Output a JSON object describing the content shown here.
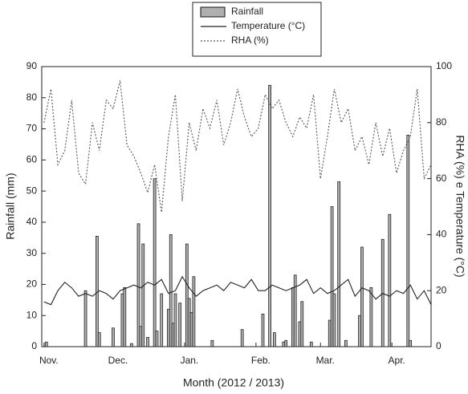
{
  "chart_data": {
    "type": "bar-line",
    "xlabel": "Month (2012 / 2013)",
    "ylabel": "Rainfall (mm)",
    "y2label": "RHA (%) e Temperature (°C)",
    "xlim": [
      -1,
      168
    ],
    "ylim": [
      0,
      90
    ],
    "y2lim": [
      0,
      100
    ],
    "xticks": [
      {
        "value": 0,
        "label": "Nov."
      },
      {
        "value": 30,
        "label": "Dec."
      },
      {
        "value": 61,
        "label": "Jan."
      },
      {
        "value": 92,
        "label": "Feb."
      },
      {
        "value": 120,
        "label": "Mar."
      },
      {
        "value": 151,
        "label": "Apr."
      }
    ],
    "yticks": [
      0,
      10,
      20,
      30,
      40,
      50,
      60,
      70,
      80,
      90
    ],
    "y2ticks": [
      0,
      20,
      40,
      60,
      80,
      100
    ],
    "series": [
      {
        "name": "Rainfall",
        "kind": "bar",
        "color": "#b0b0b0",
        "x": [
          1,
          18,
          23,
          24,
          30,
          34,
          35,
          38,
          41,
          42,
          43,
          45,
          48,
          49,
          51,
          54,
          55,
          56,
          57,
          59,
          62,
          63,
          64,
          65,
          73,
          86,
          95,
          98,
          100,
          104,
          105,
          108,
          109,
          111,
          112,
          116,
          124,
          125,
          126,
          128,
          131,
          137,
          138,
          142,
          147,
          150,
          158,
          159
        ],
        "values": [
          1.5,
          18,
          35.5,
          4.5,
          6,
          17,
          19,
          1,
          39.5,
          6.5,
          33,
          3,
          54,
          5,
          17,
          12,
          36,
          7.5,
          17,
          14,
          33,
          15.5,
          11,
          22.5,
          2,
          5.5,
          10.5,
          84,
          4.5,
          1.5,
          2,
          19,
          23,
          8,
          14.5,
          1.5,
          8.5,
          45,
          17,
          53,
          2,
          10,
          32,
          19,
          34.5,
          42.5,
          68,
          2
        ]
      },
      {
        "name": "Temperature (°C)",
        "kind": "line",
        "axis": "y2",
        "color": "#222",
        "dash": "none",
        "x": [
          0,
          3,
          6,
          9,
          12,
          15,
          18,
          21,
          24,
          27,
          30,
          33,
          36,
          39,
          42,
          45,
          48,
          51,
          54,
          57,
          60,
          63,
          66,
          69,
          72,
          75,
          78,
          81,
          84,
          87,
          90,
          93,
          96,
          99,
          102,
          105,
          108,
          111,
          114,
          117,
          120,
          123,
          126,
          129,
          132,
          135,
          138,
          141,
          144,
          147,
          150,
          153,
          156,
          159,
          162,
          165,
          168
        ],
        "values": [
          16,
          15,
          20,
          23,
          21,
          18,
          19,
          18,
          20,
          19,
          17,
          20,
          21,
          22,
          21,
          23,
          22,
          24,
          19,
          20,
          25,
          21,
          18,
          20,
          21,
          22,
          20,
          23,
          22,
          21,
          24,
          20,
          20,
          22,
          21,
          20,
          21,
          22,
          24,
          19,
          21,
          19,
          20,
          22,
          24,
          18,
          21,
          20,
          17,
          19,
          18,
          20,
          19,
          22,
          17,
          20,
          15
        ]
      },
      {
        "name": "RHA (%)",
        "kind": "line",
        "axis": "y2",
        "color": "#555",
        "dash": "2 2",
        "x": [
          0,
          3,
          6,
          9,
          12,
          15,
          18,
          21,
          24,
          27,
          30,
          33,
          36,
          39,
          42,
          45,
          48,
          51,
          54,
          57,
          60,
          63,
          66,
          69,
          72,
          75,
          78,
          81,
          84,
          87,
          90,
          93,
          96,
          99,
          102,
          105,
          108,
          111,
          114,
          117,
          120,
          123,
          126,
          129,
          132,
          135,
          138,
          141,
          144,
          147,
          150,
          153,
          156,
          159,
          162,
          165,
          168
        ],
        "values": [
          80,
          92,
          65,
          70,
          88,
          62,
          58,
          80,
          70,
          88,
          85,
          95,
          72,
          68,
          62,
          55,
          65,
          48,
          75,
          90,
          52,
          80,
          70,
          85,
          78,
          88,
          72,
          80,
          92,
          82,
          75,
          78,
          90,
          85,
          88,
          80,
          75,
          82,
          78,
          90,
          60,
          75,
          92,
          80,
          85,
          70,
          75,
          65,
          80,
          68,
          78,
          62,
          70,
          75,
          92,
          60,
          65
        ]
      }
    ]
  }
}
